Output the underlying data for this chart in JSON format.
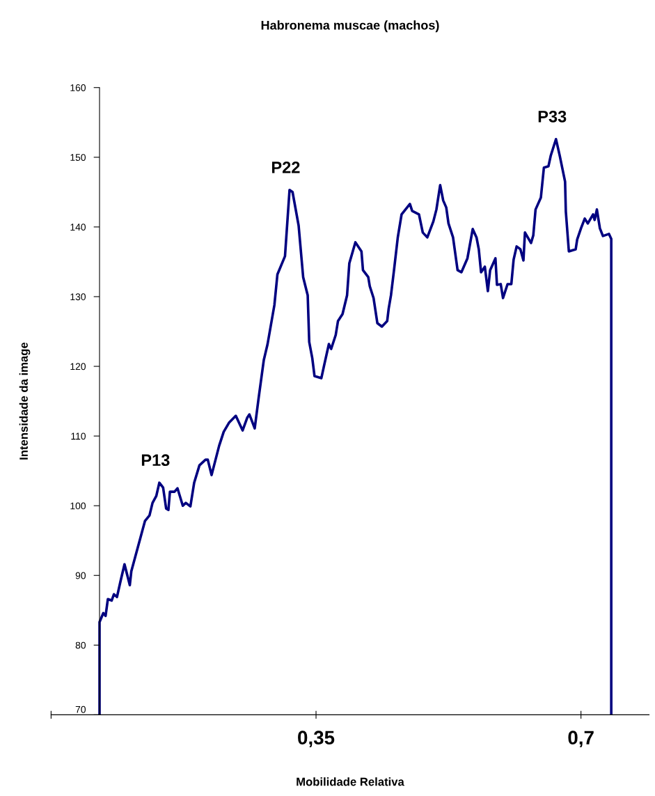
{
  "chart_data": {
    "type": "line",
    "title": "Habronema muscae (machos)",
    "xlabel": "Mobilidade Relativa",
    "ylabel": "Intensidade da image",
    "x": [
      0.064,
      0.064,
      0.069,
      0.072,
      0.075,
      0.08,
      0.083,
      0.087,
      0.092,
      0.097,
      0.104,
      0.106,
      0.111,
      0.118,
      0.124,
      0.13,
      0.134,
      0.139,
      0.143,
      0.148,
      0.152,
      0.155,
      0.157,
      0.163,
      0.167,
      0.174,
      0.178,
      0.184,
      0.189,
      0.196,
      0.204,
      0.207,
      0.212,
      0.222,
      0.228,
      0.235,
      0.244,
      0.253,
      0.259,
      0.262,
      0.269,
      0.274,
      0.281,
      0.286,
      0.295,
      0.299,
      0.309,
      0.315,
      0.319,
      0.327,
      0.333,
      0.339,
      0.341,
      0.345,
      0.348,
      0.357,
      0.361,
      0.367,
      0.37,
      0.376,
      0.379,
      0.385,
      0.391,
      0.394,
      0.402,
      0.41,
      0.412,
      0.419,
      0.421,
      0.426,
      0.431,
      0.437,
      0.444,
      0.446,
      0.449,
      0.453,
      0.458,
      0.463,
      0.474,
      0.477,
      0.486,
      0.491,
      0.497,
      0.505,
      0.509,
      0.514,
      0.518,
      0.522,
      0.525,
      0.531,
      0.537,
      0.542,
      0.55,
      0.557,
      0.562,
      0.565,
      0.568,
      0.573,
      0.577,
      0.58,
      0.587,
      0.589,
      0.594,
      0.597,
      0.603,
      0.608,
      0.611,
      0.615,
      0.62,
      0.624,
      0.626,
      0.634,
      0.637,
      0.64,
      0.647,
      0.651,
      0.657,
      0.66,
      0.667,
      0.672,
      0.679,
      0.68,
      0.684,
      0.693,
      0.695,
      0.7,
      0.705,
      0.709,
      0.716,
      0.718,
      0.721,
      0.725,
      0.729,
      0.737,
      0.74,
      0.74
    ],
    "series": [
      {
        "color": "#000080",
        "values": [
          70,
          83.3,
          84.6,
          84.2,
          86.6,
          86.4,
          87.3,
          86.9,
          89.3,
          91.6,
          88.6,
          90.6,
          92.6,
          95.4,
          97.8,
          98.6,
          100.4,
          101.4,
          103.3,
          102.6,
          99.6,
          99.4,
          102.0,
          102.0,
          102.5,
          100.0,
          100.4,
          99.9,
          103.3,
          105.8,
          106.6,
          106.6,
          104.4,
          108.6,
          110.6,
          111.9,
          112.9,
          110.8,
          112.6,
          113.1,
          111.1,
          115.3,
          120.9,
          123.2,
          128.8,
          133.2,
          135.8,
          145.3,
          145.0,
          140.2,
          132.8,
          130.2,
          123.5,
          121.2,
          118.6,
          118.3,
          120.3,
          123.2,
          122.5,
          124.5,
          126.5,
          127.5,
          130.2,
          134.8,
          137.8,
          136.5,
          133.8,
          132.8,
          131.5,
          129.8,
          126.2,
          125.7,
          126.5,
          128.3,
          130.2,
          133.8,
          138.5,
          141.8,
          143.3,
          142.3,
          141.8,
          139.2,
          138.5,
          140.8,
          142.5,
          146.0,
          143.8,
          142.8,
          140.5,
          138.5,
          133.8,
          133.5,
          135.5,
          139.7,
          138.5,
          136.8,
          133.5,
          134.3,
          130.8,
          133.8,
          135.5,
          131.7,
          131.8,
          129.8,
          131.8,
          131.8,
          135.3,
          137.2,
          136.8,
          135.2,
          139.2,
          137.7,
          138.8,
          142.5,
          144.2,
          148.5,
          148.7,
          150.2,
          152.6,
          150.2,
          146.5,
          142.2,
          136.5,
          136.8,
          138.2,
          139.8,
          141.2,
          140.5,
          141.8,
          141.0,
          142.5,
          139.8,
          138.7,
          139.0,
          138.3,
          70
        ]
      }
    ],
    "xlim": [
      0,
      0.79
    ],
    "xticks": [
      {
        "value": 0,
        "label": null
      },
      {
        "value": 0.35,
        "label": "0,35"
      },
      {
        "value": 0.7,
        "label": "0,7"
      }
    ],
    "ylim": [
      70,
      160
    ],
    "yticks": [
      70,
      80,
      90,
      100,
      110,
      120,
      130,
      140,
      150,
      160
    ],
    "annotations": [
      {
        "text": "P13",
        "x": 0.143,
        "y": 103.3
      },
      {
        "text": "P22",
        "x": 0.315,
        "y": 145.3
      },
      {
        "text": "P33",
        "x": 0.667,
        "y": 152.6
      }
    ],
    "grid": false,
    "legend": false,
    "marker": "none",
    "line_style": "solid"
  }
}
